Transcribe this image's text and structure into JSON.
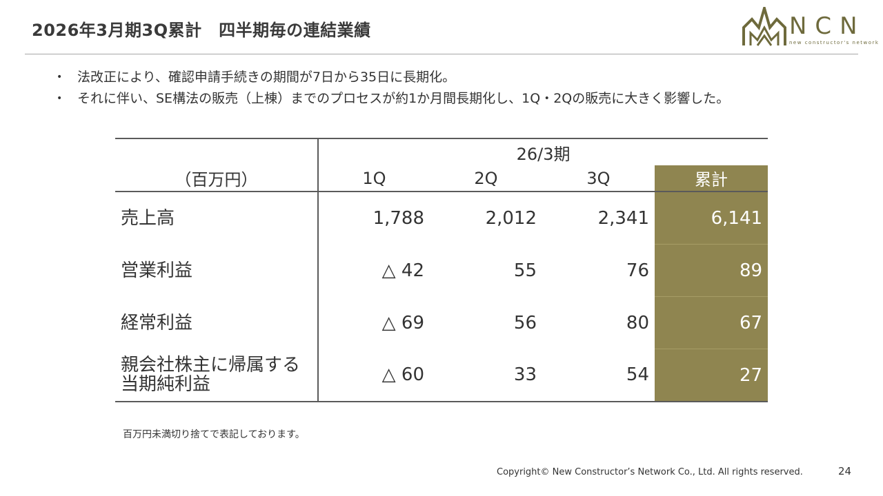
{
  "slide": {
    "title": "2026年3月期3Q累計　四半期毎の連結業績",
    "page_number": "24",
    "copyright": "Copyright© New Constructor’s Network Co., Ltd. All rights reserved."
  },
  "logo": {
    "letters": "NCN",
    "tagline": "new constructor's network",
    "color": "#6e6a3c"
  },
  "bullets": [
    "法改正により、確認申請手続きの期間が7日から35日に長期化。",
    "それに伴い、SE構法の販売（上棟）までのプロセスが約1か月間長期化し、1Q・2Qの販売に大きく影響した。"
  ],
  "table": {
    "period_label": "26/3期",
    "unit_label": "（百万円）",
    "columns": [
      "1Q",
      "2Q",
      "3Q",
      "累計"
    ],
    "rows": [
      {
        "label": "売上高",
        "values": [
          "1,788",
          "2,012",
          "2,341",
          "6,141"
        ]
      },
      {
        "label": "営業利益",
        "values": [
          "△ 42",
          "55",
          "76",
          "89"
        ]
      },
      {
        "label": "経常利益",
        "values": [
          "△ 69",
          "56",
          "80",
          "67"
        ]
      },
      {
        "label_line1": "親会社株主に帰属する",
        "label_line2": "当期純利益",
        "values": [
          "△ 60",
          "33",
          "54",
          "27"
        ]
      }
    ],
    "highlight_color": "#8f8550"
  },
  "note": "百万円未満切り捨てで表記しております。"
}
